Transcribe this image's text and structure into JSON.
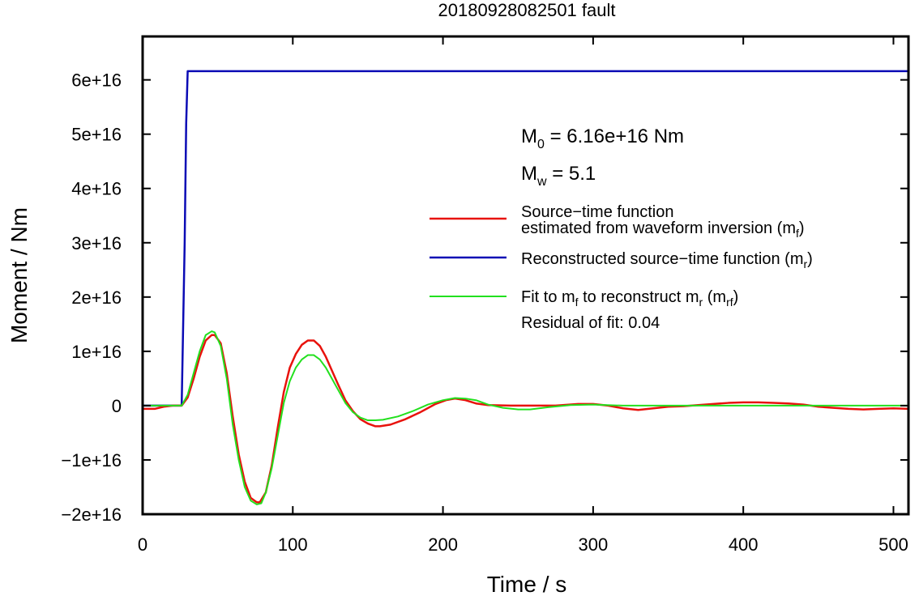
{
  "chart_data": {
    "type": "line",
    "title": "20180928082501 fault",
    "xlabel": "Time / s",
    "ylabel": "Moment / Nm",
    "xlim": [
      0,
      510
    ],
    "ylim": [
      -2e+16,
      6.8e+16
    ],
    "x_ticks": [
      0,
      100,
      200,
      300,
      400,
      500
    ],
    "x_tick_labels": [
      "0",
      "100",
      "200",
      "300",
      "400",
      "500"
    ],
    "y_ticks": [
      -2e+16,
      -1e+16,
      0,
      1e+16,
      2e+16,
      3e+16,
      4e+16,
      5e+16,
      6e+16
    ],
    "y_tick_labels": [
      "−2e+16",
      "−1e+16",
      "0",
      "1e+16",
      "2e+16",
      "3e+16",
      "4e+16",
      "5e+16",
      "6e+16"
    ],
    "grid": false,
    "legend_position": "right",
    "annotations": {
      "m0": {
        "symbol": "M",
        "sub": "0",
        "text": " = 6.16e+16 Nm"
      },
      "mw": {
        "symbol": "M",
        "sub": "w",
        "text": " = 5.1"
      },
      "residual": "Residual of fit: 0.04"
    },
    "series": [
      {
        "name": "Source−time function estimated from waveform inversion (m_f)",
        "legend_line1": "Source−time function",
        "legend_line2_main": "estimated from waveform inversion (m",
        "legend_line2_sub": "f",
        "legend_line2_end": ")",
        "color": "#e8120c",
        "x": [
          0,
          8,
          14,
          20,
          26,
          30,
          34,
          38,
          42,
          46,
          48,
          52,
          56,
          60,
          64,
          68,
          72,
          76,
          78,
          82,
          86,
          90,
          94,
          98,
          102,
          106,
          110,
          114,
          118,
          122,
          126,
          130,
          135,
          140,
          145,
          150,
          155,
          158,
          165,
          175,
          185,
          195,
          202,
          208,
          215,
          222,
          230,
          245,
          260,
          275,
          290,
          300,
          310,
          320,
          330,
          340,
          350,
          360,
          370,
          380,
          390,
          400,
          410,
          420,
          430,
          440,
          450,
          460,
          470,
          480,
          490,
          500,
          510
        ],
        "y": [
          -600000000000000.0,
          -600000000000000.0,
          -200000000000000.0,
          0.0,
          0.0,
          1500000000000000.0,
          5000000000000000.0,
          9000000000000000.0,
          1.2e+16,
          1.3e+16,
          1.3e+16,
          1.15e+16,
          6000000000000000.0,
          -2000000000000000.0,
          -9000000000000000.0,
          -1.4e+16,
          -1.7e+16,
          -1.78e+16,
          -1.78e+16,
          -1.6e+16,
          -1.1e+16,
          -4000000000000000.0,
          2500000000000000.0,
          7000000000000000.0,
          9500000000000000.0,
          1.12e+16,
          1.2e+16,
          1.2e+16,
          1.1e+16,
          9000000000000000.0,
          6500000000000000.0,
          4000000000000000.0,
          1000000000000000.0,
          -1000000000000000.0,
          -2500000000000000.0,
          -3300000000000000.0,
          -3800000000000000.0,
          -3800000000000000.0,
          -3500000000000000.0,
          -2500000000000000.0,
          -1200000000000000.0,
          300000000000000.0,
          1000000000000000.0,
          1300000000000000.0,
          1000000000000000.0,
          400000000000000.0,
          100000000000000.0,
          0.0,
          0.0,
          0.0,
          300000000000000.0,
          300000000000000.0,
          0.0,
          -500000000000000.0,
          -800000000000000.0,
          -500000000000000.0,
          -200000000000000.0,
          -100000000000000.0,
          100000000000000.0,
          300000000000000.0,
          500000000000000.0,
          600000000000000.0,
          600000000000000.0,
          500000000000000.0,
          400000000000000.0,
          200000000000000.0,
          -200000000000000.0,
          -400000000000000.0,
          -600000000000000.0,
          -700000000000000.0,
          -600000000000000.0,
          -500000000000000.0,
          -600000000000000.0
        ]
      },
      {
        "name": "Reconstructed source−time function (m_r)",
        "legend_main": "Reconstructed source−time function (m",
        "legend_sub": "r",
        "legend_end": ")",
        "color": "#0b0bb5",
        "x": [
          0,
          26,
          28,
          29,
          30,
          40,
          100,
          200,
          300,
          400,
          510
        ],
        "y": [
          0,
          0,
          3e+16,
          5.2e+16,
          6.16e+16,
          6.16e+16,
          6.16e+16,
          6.16e+16,
          6.16e+16,
          6.16e+16,
          6.16e+16
        ]
      },
      {
        "name": "Fit to m_f to reconstruct m_r (m_rf)",
        "legend_a": "Fit to m",
        "legend_a_sub": "f",
        "legend_b": " to reconstruct m",
        "legend_b_sub": "r",
        "legend_c": " (m",
        "legend_c_sub": "rf",
        "legend_d": ")",
        "color": "#22e01e",
        "x": [
          0,
          20,
          26,
          30,
          34,
          38,
          42,
          46,
          48,
          52,
          56,
          60,
          64,
          68,
          72,
          76,
          79,
          82,
          86,
          90,
          94,
          98,
          102,
          106,
          110,
          114,
          118,
          122,
          126,
          130,
          135,
          140,
          145,
          150,
          155,
          160,
          170,
          180,
          190,
          200,
          208,
          215,
          222,
          230,
          240,
          250,
          258,
          270,
          285,
          300,
          320,
          350,
          380,
          410,
          440,
          470,
          510
        ],
        "y": [
          0.0,
          0.0,
          0.0,
          2000000000000000.0,
          6000000000000000.0,
          1e+16,
          1.3e+16,
          1.37e+16,
          1.35e+16,
          1.1e+16,
          5000000000000000.0,
          -3500000000000000.0,
          -1e+16,
          -1.5e+16,
          -1.75e+16,
          -1.82e+16,
          -1.8e+16,
          -1.6e+16,
          -1.15e+16,
          -5500000000000000.0,
          500000000000000.0,
          4500000000000000.0,
          7000000000000000.0,
          8500000000000000.0,
          9300000000000000.0,
          9300000000000000.0,
          8500000000000000.0,
          7000000000000000.0,
          5000000000000000.0,
          3000000000000000.0,
          500000000000000.0,
          -1200000000000000.0,
          -2200000000000000.0,
          -2700000000000000.0,
          -2700000000000000.0,
          -2600000000000000.0,
          -2000000000000000.0,
          -1000000000000000.0,
          200000000000000.0,
          1000000000000000.0,
          1400000000000000.0,
          1300000000000000.0,
          1000000000000000.0,
          200000000000000.0,
          -400000000000000.0,
          -700000000000000.0,
          -700000000000000.0,
          -300000000000000.0,
          100000000000000.0,
          200000000000000.0,
          0.0,
          0.0,
          0.0,
          0.0,
          0.0,
          0.0,
          0.0
        ]
      }
    ]
  }
}
